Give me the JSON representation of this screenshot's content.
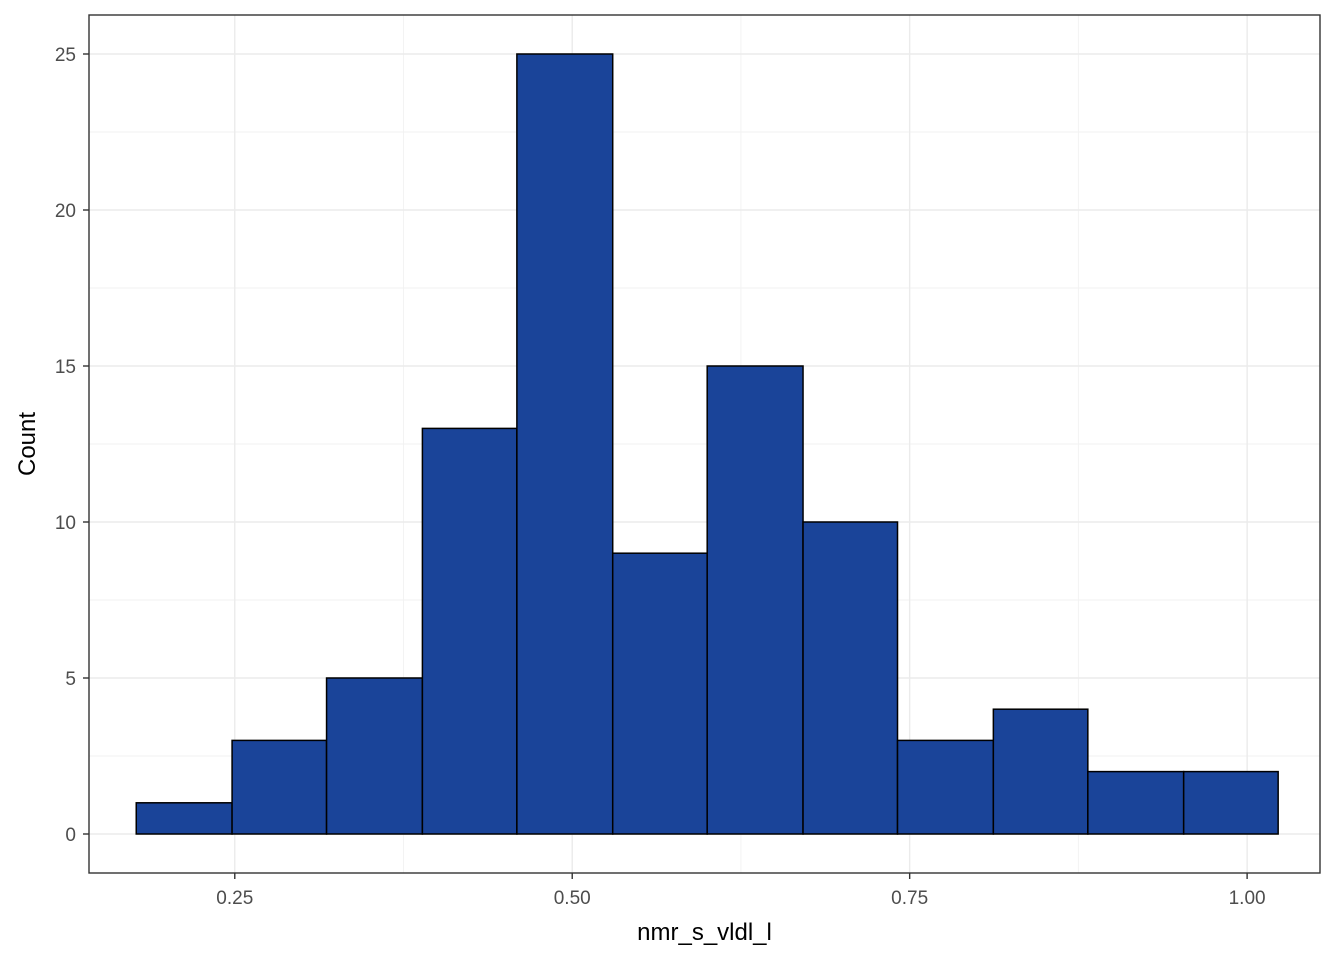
{
  "chart_data": {
    "type": "bar",
    "subtype": "histogram",
    "xlabel": "nmr_s_vldl_l",
    "ylabel": "Count",
    "x_ticks": [
      "0.25",
      "0.50",
      "0.75",
      "1.00"
    ],
    "y_ticks": [
      "0",
      "5",
      "10",
      "15",
      "20",
      "25"
    ],
    "xlim": [
      0.142,
      1.054
    ],
    "ylim": [
      -1.25,
      26.25
    ],
    "bins": [
      {
        "start": 0.177,
        "end": 0.248,
        "count": 1
      },
      {
        "start": 0.248,
        "end": 0.318,
        "count": 3
      },
      {
        "start": 0.318,
        "end": 0.389,
        "count": 5
      },
      {
        "start": 0.389,
        "end": 0.459,
        "count": 13
      },
      {
        "start": 0.459,
        "end": 0.53,
        "count": 25
      },
      {
        "start": 0.53,
        "end": 0.6,
        "count": 9
      },
      {
        "start": 0.6,
        "end": 0.671,
        "count": 15
      },
      {
        "start": 0.671,
        "end": 0.741,
        "count": 10
      },
      {
        "start": 0.741,
        "end": 0.812,
        "count": 3
      },
      {
        "start": 0.812,
        "end": 0.882,
        "count": 4
      },
      {
        "start": 0.882,
        "end": 0.953,
        "count": 2
      },
      {
        "start": 0.953,
        "end": 1.023,
        "count": 2
      }
    ],
    "bar_color": "#1a4499",
    "bar_outline": "#000000",
    "grid": true,
    "theme": "bw"
  }
}
